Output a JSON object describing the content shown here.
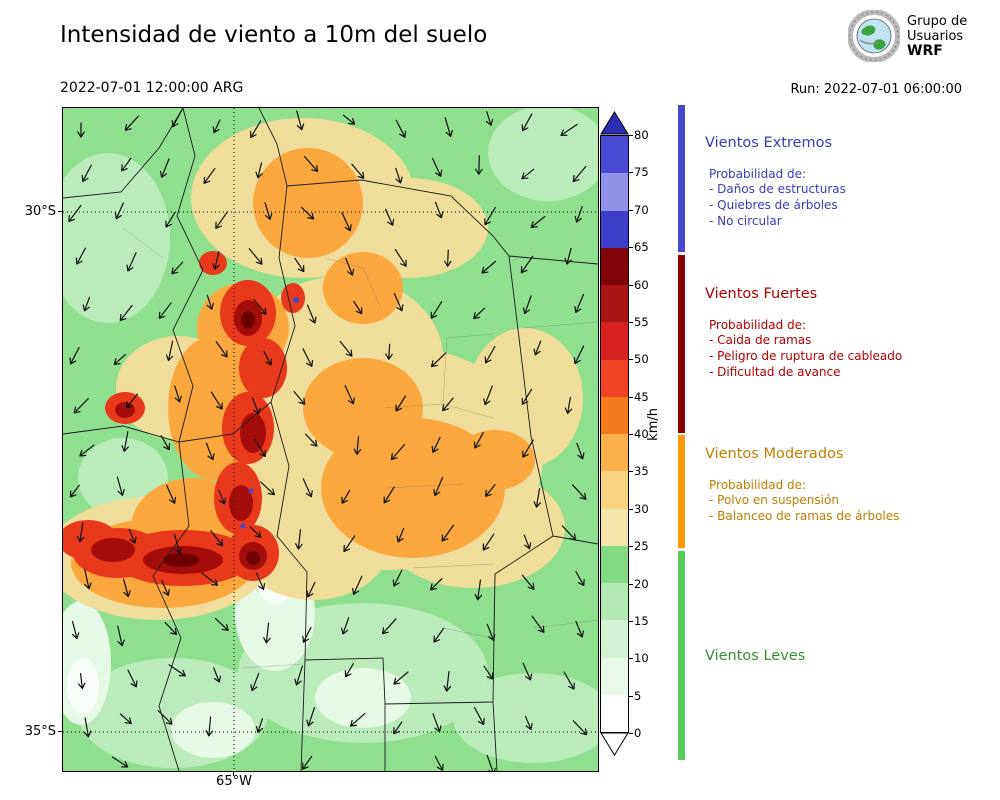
{
  "header": {
    "title": "Intensidad de viento a 10m del suelo",
    "datetime": "2022-07-01 12:00:00 ARG",
    "run_label": "Run: 2022-07-01 06:00:00",
    "logo_lines": [
      "Grupo de",
      "Usuarios",
      "WRF"
    ]
  },
  "map": {
    "lat_labels": [
      "30°S",
      "35°S"
    ],
    "lon_label": "65°W"
  },
  "colorbar": {
    "unit": "km/h",
    "tick_labels": [
      "80",
      "75",
      "70",
      "65",
      "60",
      "55",
      "50",
      "45",
      "40",
      "35",
      "30",
      "25",
      "20",
      "15",
      "10",
      "5",
      "0"
    ],
    "over_color": "#2d2db4",
    "under_color": "#ffffff",
    "segments_top_to_bottom": [
      "#4a4ad6",
      "#9191e8",
      "#3e3ecb",
      "#7f0508",
      "#a81414",
      "#d92121",
      "#ef4423",
      "#f57b1c",
      "#fcb04d",
      "#f8d380",
      "#f4e6a8",
      "#82da82",
      "#b2e8b2",
      "#d3f2d3",
      "#e9f8e9",
      "#ffffff"
    ]
  },
  "legend": {
    "sections": [
      {
        "title": "Vientos Extremos",
        "color": "#3a3ab8",
        "bar_color": "#4646cf",
        "prob_label": "Probabilidad de:",
        "items": [
          "- Daños de estructuras",
          "- Quiebres de árboles",
          "- No circular"
        ]
      },
      {
        "title": "Vientos Fuertes",
        "color": "#b30000",
        "bar_color": "#8b0000",
        "prob_label": "Probabilidad de:",
        "items": [
          "- Caida de ramas",
          "- Peligro de ruptura de cableado",
          "- Dificultad de avance"
        ]
      },
      {
        "title": "Vientos Moderados",
        "color": "#bf7d00",
        "bar_color": "#ff9908",
        "prob_label": "Probabilidad de:",
        "items": [
          "- Polvo en suspensión",
          "- Balanceo de ramas de árboles"
        ]
      },
      {
        "title": "Vientos Leves",
        "color": "#3c8a3c",
        "bar_color": "#58cc58",
        "prob_label": "",
        "items": []
      }
    ]
  }
}
